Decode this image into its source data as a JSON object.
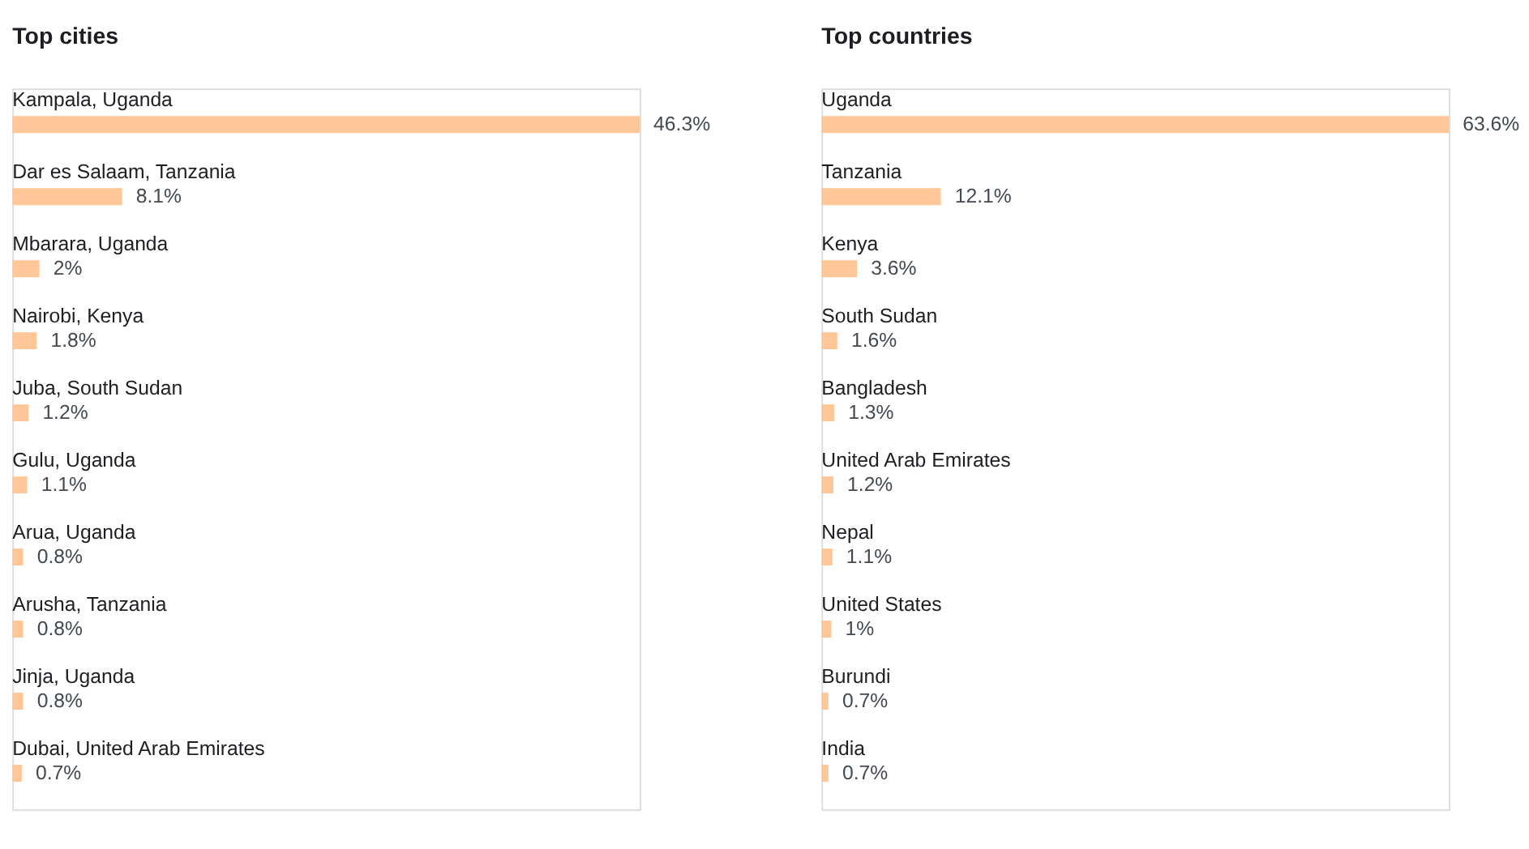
{
  "chart_data": [
    {
      "type": "bar",
      "orientation": "horizontal",
      "title": "Top cities",
      "categories": [
        "Kampala, Uganda",
        "Dar es Salaam, Tanzania",
        "Mbarara, Uganda",
        "Nairobi, Kenya",
        "Juba, South Sudan",
        "Gulu, Uganda",
        "Arua, Uganda",
        "Arusha, Tanzania",
        "Jinja, Uganda",
        "Dubai, United Arab Emirates"
      ],
      "values": [
        46.3,
        8.1,
        2,
        1.8,
        1.2,
        1.1,
        0.8,
        0.8,
        0.8,
        0.7
      ],
      "value_labels": [
        "46.3%",
        "8.1%",
        "2%",
        "1.8%",
        "1.2%",
        "1.1%",
        "0.8%",
        "0.8%",
        "0.8%",
        "0.7%"
      ],
      "color": "#ffc697"
    },
    {
      "type": "bar",
      "orientation": "horizontal",
      "title": "Top countries",
      "categories": [
        "Uganda",
        "Tanzania",
        "Kenya",
        "South Sudan",
        "Bangladesh",
        "United Arab Emirates",
        "Nepal",
        "United States",
        "Burundi",
        "India"
      ],
      "values": [
        63.6,
        12.1,
        3.6,
        1.6,
        1.3,
        1.2,
        1.1,
        1,
        0.7,
        0.7
      ],
      "value_labels": [
        "63.6%",
        "12.1%",
        "3.6%",
        "1.6%",
        "1.3%",
        "1.2%",
        "1.1%",
        "1%",
        "0.7%",
        "0.7%"
      ],
      "color": "#ffc697"
    }
  ]
}
